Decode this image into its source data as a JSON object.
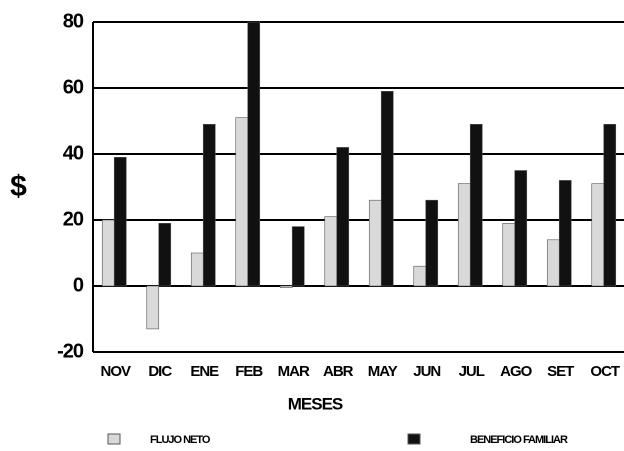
{
  "chart_data": {
    "type": "bar",
    "y_label": "$",
    "x_label": "MESES",
    "categories": [
      "NOV",
      "DIC",
      "ENE",
      "FEB",
      "MAR",
      "ABR",
      "MAY",
      "JUN",
      "JUL",
      "AGO",
      "SET",
      "OCT"
    ],
    "series": [
      {
        "name": "FLUJO NETO",
        "color": "#d9d9d9",
        "values": [
          20,
          -13,
          10,
          51,
          -0.5,
          21,
          26,
          6,
          31,
          19,
          14,
          31
        ]
      },
      {
        "name": "BENEFICIO FAMILIAR",
        "color": "#111111",
        "values": [
          39,
          19,
          49,
          80,
          18,
          42,
          59,
          26,
          49,
          35,
          32,
          49
        ]
      }
    ],
    "ylim": [
      -20,
      80
    ],
    "yticks": [
      -20,
      0,
      20,
      40,
      60,
      80
    ],
    "grid": true
  }
}
